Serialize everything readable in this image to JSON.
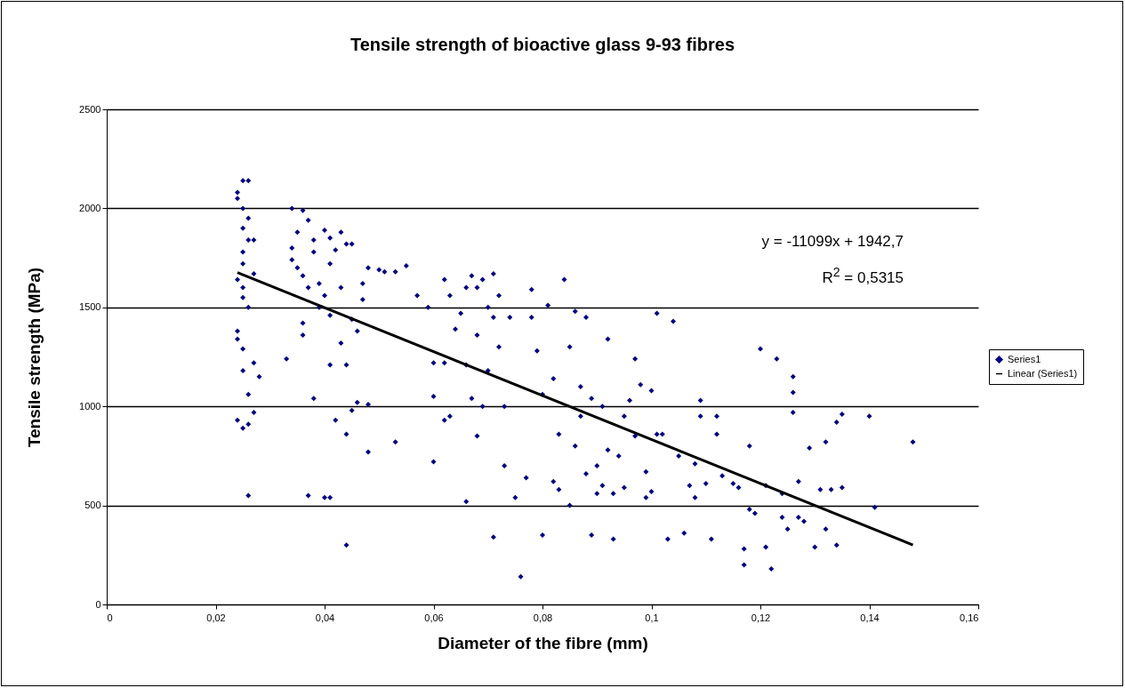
{
  "chart_data": {
    "type": "scatter",
    "title": "Tensile strength of bioactive glass 9-93 fibres",
    "xlabel": "Diameter of the fibre (mm)",
    "ylabel": "Tensile strength (MPa)",
    "annotations": [
      "y = -11099x + 1942,7",
      "R$^{2}$ = 0,5315"
    ],
    "x": [
      0.024,
      0.025,
      0.026,
      0.024,
      0.025,
      0.026,
      0.025,
      0.026,
      0.025,
      0.027,
      0.025,
      0.027,
      0.024,
      0.025,
      0.025,
      0.026,
      0.024,
      0.024,
      0.025,
      0.025,
      0.027,
      0.028,
      0.026,
      0.027,
      0.024,
      0.026,
      0.025,
      0.026,
      0.034,
      0.036,
      0.037,
      0.035,
      0.034,
      0.034,
      0.035,
      0.036,
      0.037,
      0.038,
      0.038,
      0.04,
      0.041,
      0.042,
      0.043,
      0.044,
      0.045,
      0.041,
      0.039,
      0.04,
      0.039,
      0.041,
      0.036,
      0.036,
      0.033,
      0.038,
      0.041,
      0.043,
      0.044,
      0.045,
      0.046,
      0.047,
      0.048,
      0.05,
      0.051,
      0.053,
      0.055,
      0.046,
      0.048,
      0.048,
      0.044,
      0.045,
      0.053,
      0.042,
      0.037,
      0.04,
      0.041,
      0.044,
      0.047,
      0.043,
      0.057,
      0.059,
      0.06,
      0.062,
      0.06,
      0.06,
      0.062,
      0.063,
      0.062,
      0.063,
      0.064,
      0.065,
      0.066,
      0.067,
      0.066,
      0.066,
      0.068,
      0.069,
      0.068,
      0.067,
      0.068,
      0.069,
      0.07,
      0.071,
      0.072,
      0.071,
      0.072,
      0.07,
      0.071,
      0.073,
      0.073,
      0.074,
      0.075,
      0.076,
      0.077,
      0.078,
      0.078,
      0.079,
      0.08,
      0.08,
      0.081,
      0.082,
      0.082,
      0.083,
      0.083,
      0.084,
      0.085,
      0.085,
      0.086,
      0.087,
      0.086,
      0.087,
      0.088,
      0.088,
      0.089,
      0.089,
      0.09,
      0.09,
      0.091,
      0.091,
      0.092,
      0.092,
      0.093,
      0.093,
      0.094,
      0.095,
      0.095,
      0.096,
      0.097,
      0.097,
      0.098,
      0.099,
      0.099,
      0.1,
      0.1,
      0.101,
      0.101,
      0.102,
      0.103,
      0.104,
      0.105,
      0.106,
      0.107,
      0.108,
      0.109,
      0.109,
      0.108,
      0.11,
      0.111,
      0.112,
      0.112,
      0.113,
      0.115,
      0.116,
      0.117,
      0.117,
      0.118,
      0.118,
      0.119,
      0.12,
      0.121,
      0.121,
      0.122,
      0.123,
      0.124,
      0.124,
      0.125,
      0.126,
      0.126,
      0.126,
      0.127,
      0.127,
      0.128,
      0.129,
      0.13,
      0.131,
      0.132,
      0.132,
      0.133,
      0.134,
      0.135,
      0.134,
      0.135,
      0.14,
      0.141,
      0.148
    ],
    "series": [
      {
        "name": "Series1",
        "color": "#000080",
        "marker": "diamond",
        "values": [
          2080,
          2140,
          2140,
          2050,
          2000,
          1950,
          1900,
          1840,
          1780,
          1840,
          1720,
          1670,
          1640,
          1600,
          1550,
          1500,
          1380,
          1340,
          1290,
          1180,
          1220,
          1150,
          1060,
          970,
          930,
          910,
          890,
          550,
          2000,
          1990,
          1940,
          1880,
          1800,
          1740,
          1700,
          1660,
          1600,
          1780,
          1840,
          1890,
          1850,
          1790,
          1880,
          1820,
          1820,
          1720,
          1620,
          1560,
          1500,
          1460,
          1420,
          1360,
          1240,
          1040,
          1210,
          1320,
          1210,
          1440,
          1380,
          1620,
          1700,
          1690,
          1680,
          1680,
          1710,
          1020,
          1010,
          770,
          860,
          980,
          820,
          930,
          550,
          540,
          540,
          300,
          1540,
          1600,
          1560,
          1500,
          1220,
          1220,
          1050,
          720,
          930,
          950,
          1640,
          1560,
          1390,
          1470,
          1600,
          1660,
          1210,
          520,
          1600,
          1640,
          1360,
          1040,
          850,
          1000,
          1500,
          1450,
          1560,
          1670,
          1300,
          1180,
          340,
          1000,
          700,
          1450,
          540,
          140,
          640,
          1590,
          1450,
          1280,
          1060,
          350,
          1510,
          1140,
          620,
          580,
          860,
          1640,
          1300,
          500,
          1480,
          1100,
          800,
          950,
          1450,
          660,
          350,
          1040,
          700,
          560,
          600,
          1000,
          1340,
          780,
          330,
          560,
          750,
          590,
          950,
          1030,
          1240,
          850,
          1110,
          540,
          670,
          1080,
          570,
          1470,
          860,
          860,
          330,
          1430,
          750,
          360,
          600,
          710,
          1030,
          950,
          540,
          610,
          330,
          950,
          860,
          650,
          610,
          590,
          280,
          200,
          800,
          480,
          460,
          1290,
          600,
          290,
          180,
          1240,
          560,
          440,
          380,
          1070,
          1150,
          970,
          620,
          440,
          420,
          790,
          290,
          580,
          820,
          380,
          580,
          920,
          960,
          300,
          590,
          950,
          490,
          820
        ]
      },
      {
        "name": "Linear (Series1)",
        "type": "line",
        "color": "#000000",
        "x": [
          0.024,
          0.148
        ],
        "marker": "none",
        "values": [
          1676,
          300
        ]
      }
    ],
    "xlim": [
      0,
      0.16
    ],
    "xticks": [
      0,
      {
        "value": 0.02,
        "label": "0,02"
      },
      {
        "value": 0.04,
        "label": "0,04"
      },
      {
        "value": 0.06,
        "label": "0,06"
      },
      {
        "value": 0.08,
        "label": "0,08"
      },
      {
        "value": 0.1,
        "label": "0,1"
      },
      {
        "value": 0.12,
        "label": "0,12"
      },
      {
        "value": 0.14,
        "label": "0,14"
      },
      {
        "value": 0.16,
        "label": "0,16"
      }
    ],
    "ylim": [
      0,
      2500
    ],
    "yticks": [
      0,
      500,
      1000,
      1500,
      2000,
      2500
    ],
    "grid": "y",
    "legend": "right"
  }
}
